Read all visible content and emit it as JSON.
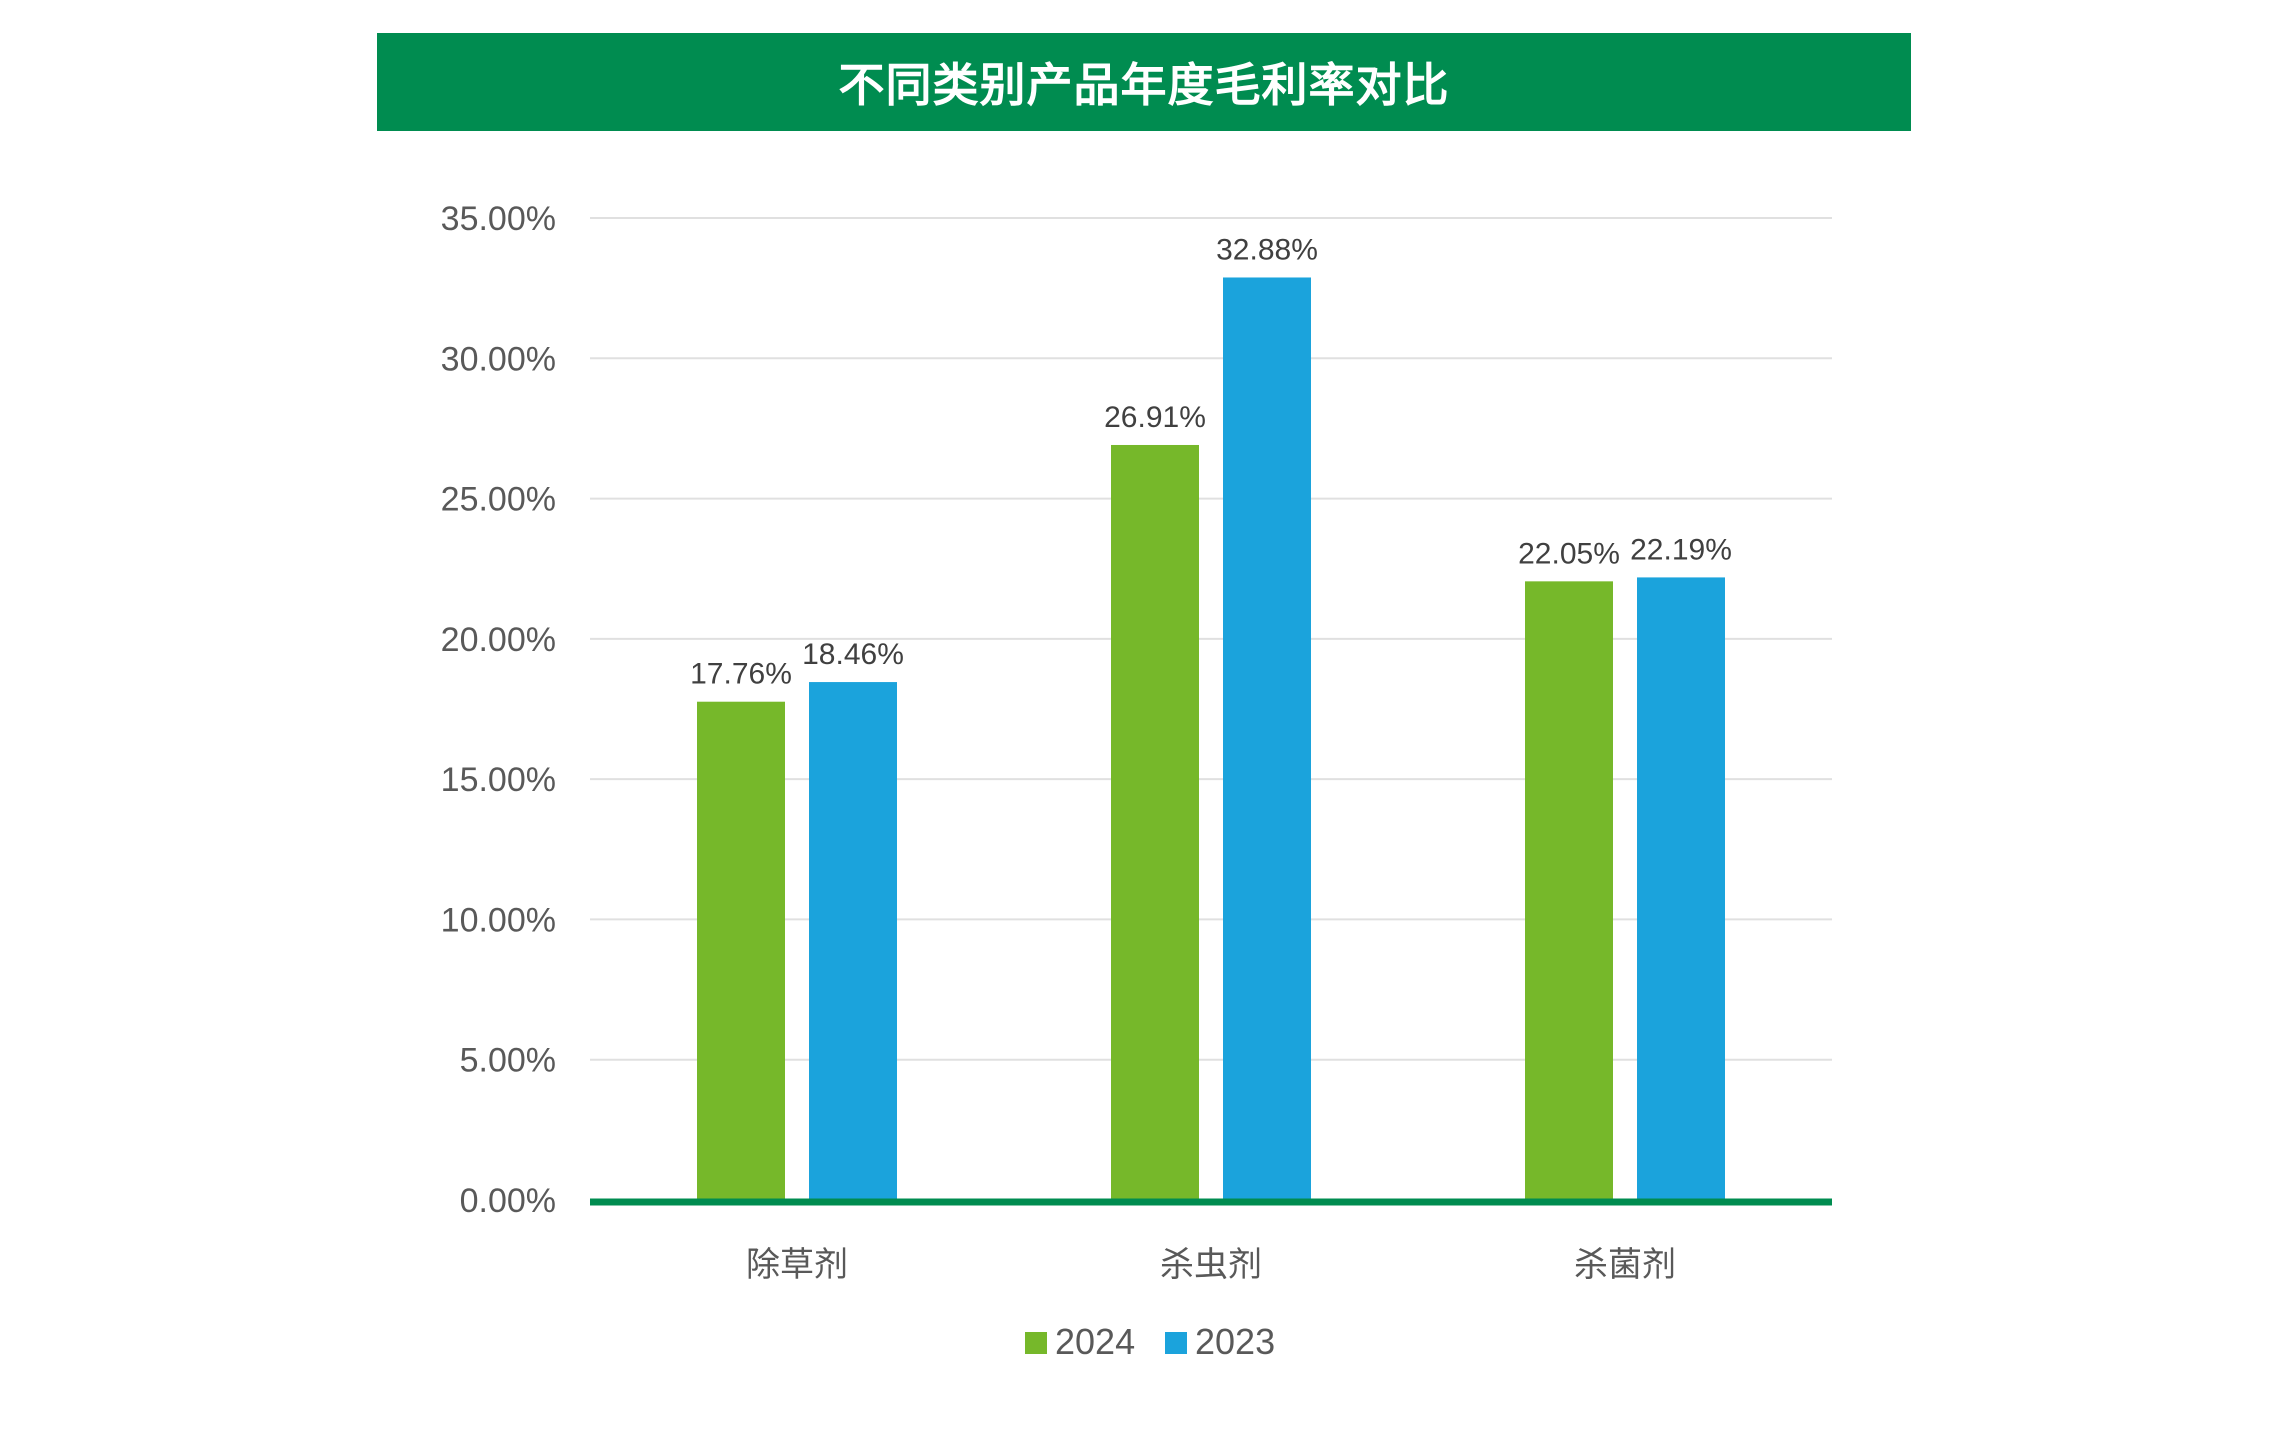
{
  "chart_data": {
    "type": "bar",
    "title": "不同类别产品年度毛利率对比",
    "categories": [
      "除草剂",
      "杀虫剂",
      "杀菌剂"
    ],
    "series": [
      {
        "name": "2024",
        "color": "#76b82a",
        "values": [
          17.76,
          26.91,
          22.05
        ],
        "labels": [
          "17.76%",
          "26.91%",
          "22.05%"
        ]
      },
      {
        "name": "2023",
        "color": "#1ba3dc",
        "values": [
          18.46,
          32.88,
          22.19
        ],
        "labels": [
          "18.46%",
          "32.88%",
          "22.19%"
        ]
      }
    ],
    "ylim": [
      0,
      35
    ],
    "yticks": [
      0,
      5,
      10,
      15,
      20,
      25,
      30,
      35
    ],
    "ytick_labels": [
      "0.00%",
      "5.00%",
      "10.00%",
      "15.00%",
      "20.00%",
      "25.00%",
      "30.00%",
      "35.00%"
    ],
    "xlabel": "",
    "ylabel": "",
    "grid": true,
    "legend_position": "bottom",
    "colors": {
      "banner": "#008c50",
      "axis_line": "#008c50",
      "grid": "#e0e0e0"
    }
  }
}
